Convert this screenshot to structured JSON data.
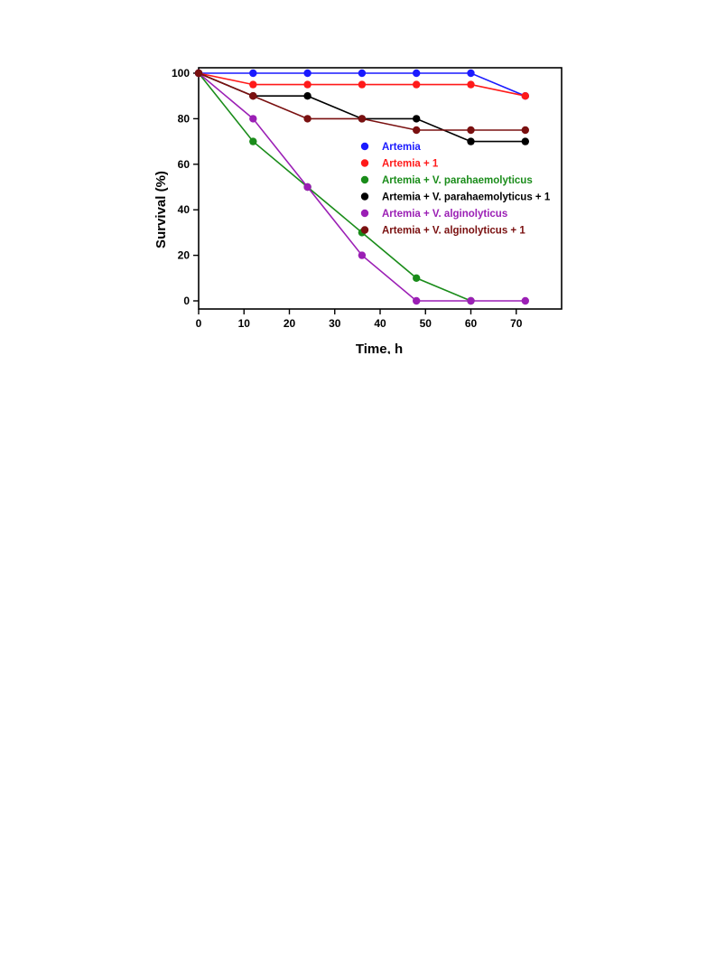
{
  "chart_data": {
    "type": "line",
    "xlabel": "Time, h",
    "ylabel": "Survival (%)",
    "xlim": [
      0,
      80
    ],
    "ylim": [
      0,
      100
    ],
    "xticks": [
      0,
      10,
      20,
      30,
      40,
      50,
      60,
      70
    ],
    "yticks": [
      0,
      20,
      40,
      60,
      80,
      100
    ],
    "grid": false,
    "legend_position": "right-center",
    "x": [
      0,
      12,
      24,
      36,
      48,
      60,
      72
    ],
    "series": [
      {
        "name": "Artemia",
        "color": "#1a1aff",
        "values": [
          100,
          100,
          100,
          100,
          100,
          100,
          90
        ]
      },
      {
        "name": "Artemia + 1",
        "color": "#ff1a1a",
        "values": [
          100,
          95,
          95,
          95,
          95,
          95,
          90
        ]
      },
      {
        "name": "Artemia + V. parahaemolyticus",
        "color": "#1a8c1a",
        "values": [
          100,
          70,
          50,
          30,
          10,
          0,
          null
        ]
      },
      {
        "name": "Artemia + V. parahaemolyticus + 1",
        "color": "#000000",
        "values": [
          100,
          90,
          90,
          80,
          80,
          70,
          70
        ]
      },
      {
        "name": "Artemia + V. alginolyticus",
        "color": "#9b1fb5",
        "values": [
          100,
          80,
          50,
          20,
          0,
          0,
          0
        ]
      },
      {
        "name": "Artemia + V. alginolyticus + 1",
        "color": "#7a1010",
        "values": [
          100,
          90,
          80,
          80,
          75,
          75,
          75
        ]
      }
    ]
  }
}
